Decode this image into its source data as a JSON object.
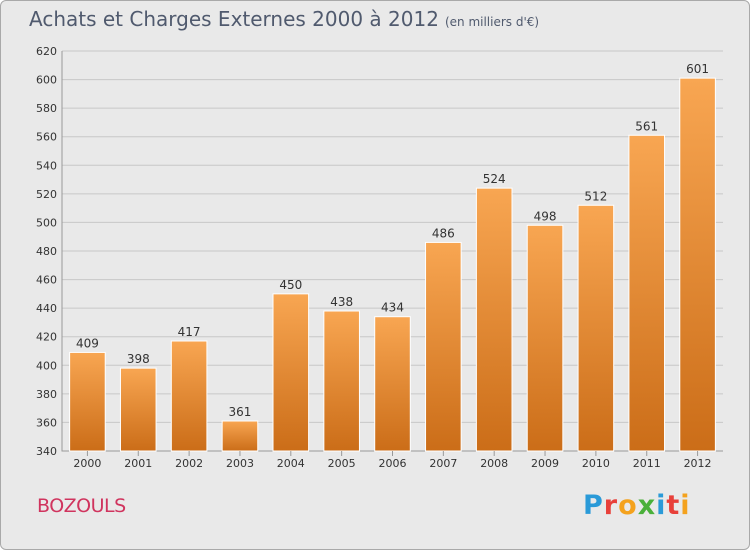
{
  "title": "Achats et Charges Externes 2000 à 2012",
  "subtitle": "(en milliers d'€)",
  "commune": "BOZOULS",
  "logo": "Proxiti",
  "colors": {
    "bar_light": "#f8a652",
    "bar_dark": "#cb6d18",
    "title": "#505a6e",
    "commune": "#d0345e",
    "grid": "#c8c8c8"
  },
  "chart_data": {
    "type": "bar",
    "categories": [
      "2000",
      "2001",
      "2002",
      "2003",
      "2004",
      "2005",
      "2006",
      "2007",
      "2008",
      "2009",
      "2010",
      "2011",
      "2012"
    ],
    "values": [
      409,
      398,
      417,
      361,
      450,
      438,
      434,
      486,
      524,
      498,
      512,
      561,
      601
    ],
    "ylim": [
      340,
      620
    ],
    "yticks": [
      340,
      360,
      380,
      400,
      420,
      440,
      460,
      480,
      500,
      520,
      540,
      560,
      580,
      600,
      620
    ],
    "xlabel": "",
    "ylabel": "",
    "grid": true,
    "legend": "none"
  }
}
